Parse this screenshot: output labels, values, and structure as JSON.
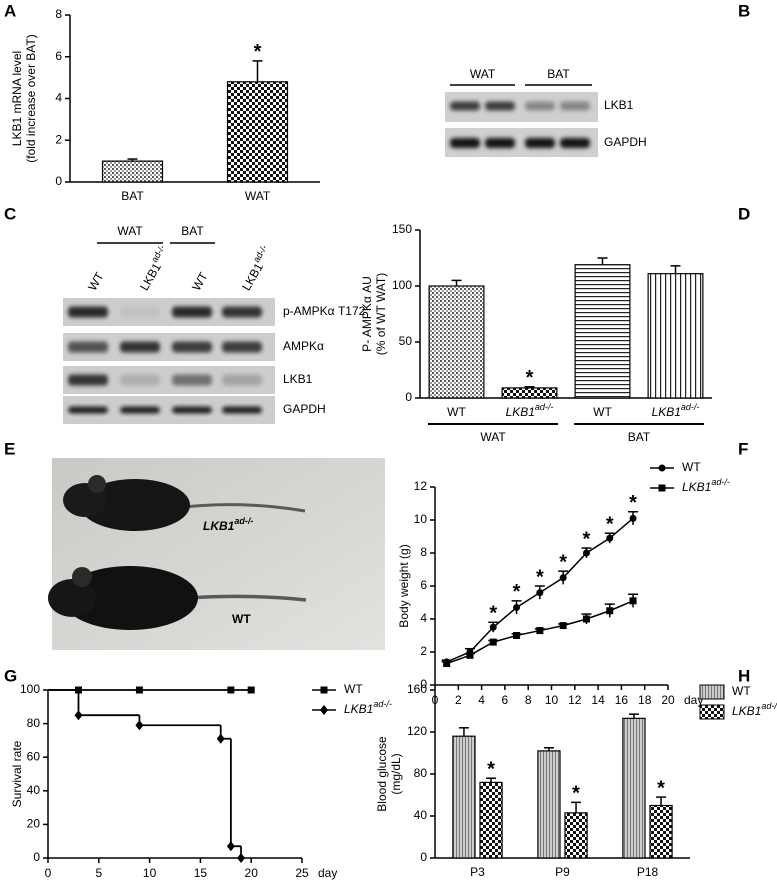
{
  "chart_data": [
    {
      "type": "bar",
      "panel": "A",
      "ylabel": [
        "LKB1 mRNA level",
        "(fold increase over BAT)"
      ],
      "categories": [
        "BAT",
        "WAT"
      ],
      "values": [
        1.0,
        4.8
      ],
      "errors": [
        0.1,
        1.0
      ],
      "patterns": [
        "dots",
        "checker"
      ],
      "significance": [
        null,
        "*"
      ],
      "ylim": [
        0,
        8
      ],
      "yticks": [
        0,
        2,
        4,
        6,
        8
      ]
    },
    {
      "type": "bar",
      "panel": "D",
      "ylabel": [
        "P- AMPKα AU",
        "(% of WT WAT)"
      ],
      "categories": [
        "WT",
        {
          "text": "LKB1",
          "sup": "ad-/-"
        },
        "WT",
        {
          "text": "LKB1",
          "sup": "ad-/-"
        }
      ],
      "groups": [
        "WAT",
        "BAT"
      ],
      "values": [
        100,
        9,
        119,
        111
      ],
      "errors": [
        5,
        1,
        6,
        7
      ],
      "patterns": [
        "dots",
        "checker",
        "hlines",
        "vlines"
      ],
      "significance": [
        null,
        "*",
        null,
        null
      ],
      "ylim": [
        0,
        150
      ],
      "yticks": [
        0,
        50,
        100,
        150
      ]
    },
    {
      "type": "line",
      "panel": "F",
      "ylabel": [
        "Body weight (g)"
      ],
      "xlabel": "day",
      "x": [
        1,
        3,
        5,
        7,
        9,
        11,
        13,
        15,
        17
      ],
      "series": [
        {
          "name": "WT",
          "marker": "circle",
          "values": [
            1.4,
            2.0,
            3.5,
            4.7,
            5.6,
            6.5,
            8.0,
            8.9,
            10.1
          ],
          "errors": [
            0.1,
            0.2,
            0.3,
            0.4,
            0.4,
            0.4,
            0.3,
            0.3,
            0.4
          ],
          "significance": [
            null,
            null,
            "*",
            "*",
            "*",
            "*",
            "*",
            "*",
            "*"
          ]
        },
        {
          "name": {
            "text": "LKB1",
            "sup": "ad-/-"
          },
          "marker": "square",
          "values": [
            1.3,
            1.8,
            2.6,
            3.0,
            3.3,
            3.6,
            4.0,
            4.5,
            5.1
          ],
          "errors": [
            0.1,
            0.1,
            0.1,
            0.1,
            0.1,
            0.1,
            0.3,
            0.4,
            0.4
          ]
        }
      ],
      "xlim": [
        0,
        20
      ],
      "xticks": [
        0,
        2,
        4,
        6,
        8,
        10,
        12,
        14,
        16,
        18,
        20
      ],
      "ylim": [
        0,
        12
      ],
      "yticks": [
        0,
        2,
        4,
        6,
        8,
        10,
        12
      ]
    },
    {
      "type": "line",
      "panel": "G",
      "step": true,
      "ylabel": [
        "Survival rate"
      ],
      "xlabel": "day",
      "series": [
        {
          "name": "WT",
          "marker": "square",
          "x": [
            0,
            3,
            9,
            18,
            20
          ],
          "values": [
            100,
            100,
            100,
            100,
            100
          ]
        },
        {
          "name": {
            "text": "LKB1",
            "sup": "ad-/-"
          },
          "marker": "diamond",
          "x": [
            0,
            3,
            9,
            17,
            18,
            19
          ],
          "values": [
            100,
            85,
            79,
            71,
            7,
            0
          ]
        }
      ],
      "xlim": [
        0,
        25
      ],
      "xticks": [
        0,
        5,
        10,
        15,
        20,
        25
      ],
      "ylim": [
        0,
        100
      ],
      "yticks": [
        0,
        20,
        40,
        60,
        80,
        100
      ]
    },
    {
      "type": "bar",
      "panel": "H",
      "ylabel": [
        "Blood glucose",
        "(mg/dL)"
      ],
      "categories": [
        "P3",
        "P9",
        "P18"
      ],
      "series": [
        {
          "name": "WT",
          "pattern": "gray",
          "values": [
            116,
            102,
            133
          ],
          "errors": [
            8,
            3,
            4
          ]
        },
        {
          "name": {
            "text": "LKB1",
            "sup": "ad-/-"
          },
          "pattern": "checker",
          "values": [
            72,
            43,
            50
          ],
          "errors": [
            4,
            10,
            8
          ],
          "significance": [
            "*",
            "*",
            "*"
          ]
        }
      ],
      "ylim": [
        0,
        160
      ],
      "yticks": [
        0,
        40,
        80,
        120,
        160
      ]
    }
  ],
  "blots": [
    {
      "panel": "B",
      "groups": [
        "WAT",
        "BAT"
      ],
      "rows": [
        "LKB1",
        "GAPDH"
      ]
    },
    {
      "panel": "C",
      "groups": [
        "WAT",
        "BAT"
      ],
      "lanes": [
        "WT",
        {
          "text": "LKB1",
          "sup": "ad-/-"
        },
        "WT",
        {
          "text": "LKB1",
          "sup": "ad-/-"
        }
      ],
      "rows": [
        "p-AMPKα T172",
        "AMPKα",
        "LKB1",
        "GAPDH"
      ]
    }
  ],
  "photo": {
    "panel": "E",
    "labels": [
      {
        "text": "LKB1",
        "sup": "ad-/-"
      },
      "WT"
    ]
  }
}
